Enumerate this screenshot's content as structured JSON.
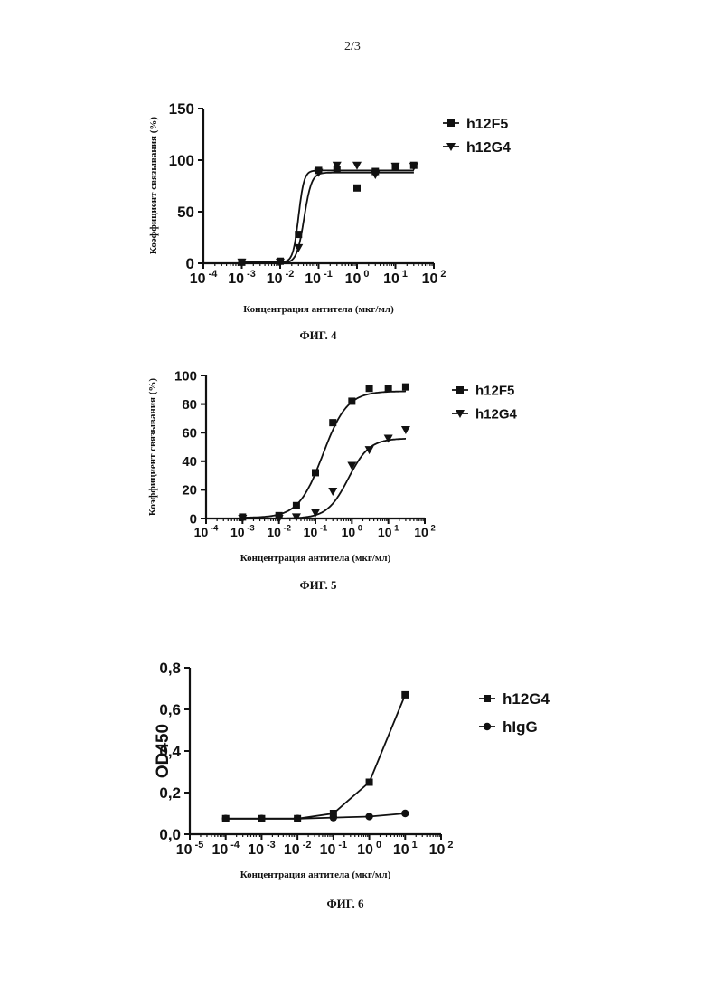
{
  "page_number": "2/3",
  "chart_data": [
    {
      "type": "scatter",
      "caption": "ФИГ. 4",
      "xlabel": "Концентрация антитела (мкг/мл)",
      "ylabel": "Коэффициент связывания (%)",
      "x_scale": "log",
      "xlim": [
        0.0001,
        100
      ],
      "ylim": [
        0,
        150
      ],
      "y_ticks": [
        "0",
        "50",
        "100",
        "150"
      ],
      "x_ticks": [
        {
          "base": "10",
          "exp": "-4"
        },
        {
          "base": "10",
          "exp": "-3"
        },
        {
          "base": "10",
          "exp": "-2"
        },
        {
          "base": "10",
          "exp": "-1"
        },
        {
          "base": "10",
          "exp": "0"
        },
        {
          "base": "10",
          "exp": "1"
        },
        {
          "base": "10",
          "exp": "2"
        }
      ],
      "legend": "right",
      "series": [
        {
          "name": "h12F5",
          "marker": "square",
          "x": [
            0.001,
            0.01,
            0.03,
            0.1,
            0.3,
            1,
            3,
            10,
            30
          ],
          "y": [
            1,
            2,
            28,
            90,
            91,
            73,
            89,
            94,
            95
          ],
          "fit": {
            "bottom": 1,
            "top": 90,
            "ec50": 0.03,
            "hill": 6
          }
        },
        {
          "name": "h12G4",
          "marker": "triangle-down",
          "x": [
            0.001,
            0.01,
            0.03,
            0.1,
            0.3,
            1,
            3,
            10,
            30
          ],
          "y": [
            1,
            1,
            15,
            88,
            95,
            95,
            86,
            94,
            94
          ],
          "fit": {
            "bottom": 0,
            "top": 88,
            "ec50": 0.042,
            "hill": 4.5
          }
        }
      ]
    },
    {
      "type": "scatter",
      "caption": "ФИГ. 5",
      "xlabel": "Концентрация антитела (мкг/мл)",
      "ylabel": "Коэффициент связывания (%)",
      "x_scale": "log",
      "xlim": [
        0.0001,
        100
      ],
      "ylim": [
        0,
        100
      ],
      "y_ticks": [
        "0",
        "20",
        "40",
        "60",
        "80",
        "100"
      ],
      "x_ticks": [
        {
          "base": "10",
          "exp": "-4"
        },
        {
          "base": "10",
          "exp": "-3"
        },
        {
          "base": "10",
          "exp": "-2"
        },
        {
          "base": "10",
          "exp": "-1"
        },
        {
          "base": "10",
          "exp": "0"
        },
        {
          "base": "10",
          "exp": "1"
        },
        {
          "base": "10",
          "exp": "2"
        }
      ],
      "legend": "right",
      "series": [
        {
          "name": "h12F5",
          "marker": "square",
          "x": [
            0.001,
            0.01,
            0.03,
            0.1,
            0.3,
            1,
            3,
            10,
            30
          ],
          "y": [
            1,
            2,
            9,
            32,
            67,
            82,
            91,
            91,
            92
          ],
          "fit": {
            "bottom": 0.5,
            "top": 89,
            "ec50": 0.16,
            "hill": 1.3
          }
        },
        {
          "name": "h12G4",
          "marker": "triangle-down",
          "x": [
            0.001,
            0.01,
            0.03,
            0.1,
            0.3,
            1,
            3,
            10,
            30
          ],
          "y": [
            0,
            0,
            1,
            4,
            19,
            37,
            48,
            56,
            62
          ],
          "fit": {
            "bottom": 0,
            "top": 56,
            "ec50": 0.8,
            "hill": 1.5
          }
        }
      ]
    },
    {
      "type": "line",
      "caption": "ФИГ. 6",
      "xlabel": "Концентрация антитела (мкг/мл)",
      "ylabel": "OD450",
      "x_scale": "log",
      "xlim": [
        1e-05,
        100
      ],
      "ylim": [
        0,
        0.8
      ],
      "y_ticks": [
        "0,0",
        "0,2",
        "0,4",
        "0,6",
        "0,8"
      ],
      "x_ticks": [
        {
          "base": "10",
          "exp": "-5"
        },
        {
          "base": "10",
          "exp": "-4"
        },
        {
          "base": "10",
          "exp": "-3"
        },
        {
          "base": "10",
          "exp": "-2"
        },
        {
          "base": "10",
          "exp": "-1"
        },
        {
          "base": "10",
          "exp": "0"
        },
        {
          "base": "10",
          "exp": "1"
        },
        {
          "base": "10",
          "exp": "2"
        }
      ],
      "legend": "right",
      "series": [
        {
          "name": "h12G4",
          "marker": "square",
          "x": [
            0.0001,
            0.001,
            0.01,
            0.1,
            1,
            10
          ],
          "y": [
            0.075,
            0.075,
            0.075,
            0.1,
            0.25,
            0.67
          ]
        },
        {
          "name": "hIgG",
          "marker": "circle",
          "x": [
            0.0001,
            0.001,
            0.01,
            0.1,
            1,
            10
          ],
          "y": [
            0.075,
            0.075,
            0.075,
            0.08,
            0.085,
            0.1
          ]
        }
      ]
    }
  ]
}
